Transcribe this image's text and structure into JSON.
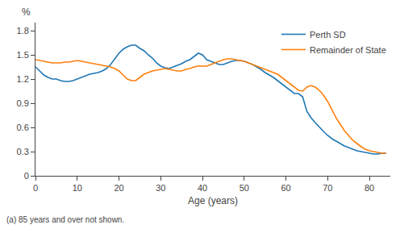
{
  "chart_data": {
    "type": "line",
    "xlabel": "Age (years)",
    "ylabel": "%",
    "footnote": "(a) 85 years and over not shown.",
    "x": [
      0,
      1,
      2,
      3,
      4,
      5,
      6,
      7,
      8,
      9,
      10,
      11,
      12,
      13,
      14,
      15,
      16,
      17,
      18,
      19,
      20,
      21,
      22,
      23,
      24,
      25,
      26,
      27,
      28,
      29,
      30,
      31,
      32,
      33,
      34,
      35,
      36,
      37,
      38,
      39,
      40,
      41,
      42,
      43,
      44,
      45,
      46,
      47,
      48,
      49,
      50,
      51,
      52,
      53,
      54,
      55,
      56,
      57,
      58,
      59,
      60,
      61,
      62,
      63,
      64,
      65,
      66,
      67,
      68,
      69,
      70,
      71,
      72,
      73,
      74,
      75,
      76,
      77,
      78,
      79,
      80,
      81,
      82,
      83,
      84
    ],
    "series": [
      {
        "name": "Perth SD",
        "values": [
          1.35,
          1.3,
          1.25,
          1.22,
          1.2,
          1.2,
          1.18,
          1.17,
          1.17,
          1.18,
          1.2,
          1.22,
          1.24,
          1.26,
          1.27,
          1.28,
          1.3,
          1.33,
          1.38,
          1.45,
          1.52,
          1.57,
          1.6,
          1.62,
          1.62,
          1.58,
          1.55,
          1.5,
          1.46,
          1.4,
          1.36,
          1.34,
          1.33,
          1.35,
          1.37,
          1.39,
          1.42,
          1.44,
          1.48,
          1.52,
          1.5,
          1.44,
          1.42,
          1.4,
          1.38,
          1.38,
          1.4,
          1.42,
          1.43,
          1.43,
          1.42,
          1.4,
          1.38,
          1.35,
          1.32,
          1.28,
          1.25,
          1.22,
          1.18,
          1.14,
          1.1,
          1.06,
          1.02,
          1.02,
          0.98,
          0.8,
          0.72,
          0.66,
          0.6,
          0.55,
          0.5,
          0.46,
          0.43,
          0.4,
          0.37,
          0.35,
          0.33,
          0.31,
          0.3,
          0.29,
          0.28,
          0.27,
          0.27,
          0.28,
          0.28
        ]
      },
      {
        "name": "Remainder of State",
        "values": [
          1.44,
          1.43,
          1.42,
          1.41,
          1.4,
          1.4,
          1.4,
          1.41,
          1.41,
          1.42,
          1.43,
          1.42,
          1.41,
          1.4,
          1.39,
          1.38,
          1.37,
          1.36,
          1.35,
          1.33,
          1.3,
          1.25,
          1.2,
          1.18,
          1.18,
          1.22,
          1.26,
          1.28,
          1.3,
          1.31,
          1.32,
          1.33,
          1.32,
          1.31,
          1.3,
          1.3,
          1.32,
          1.33,
          1.35,
          1.36,
          1.36,
          1.36,
          1.38,
          1.4,
          1.42,
          1.44,
          1.45,
          1.45,
          1.44,
          1.43,
          1.42,
          1.4,
          1.38,
          1.36,
          1.34,
          1.32,
          1.3,
          1.28,
          1.26,
          1.22,
          1.18,
          1.14,
          1.1,
          1.06,
          1.05,
          1.1,
          1.12,
          1.1,
          1.06,
          1.0,
          0.92,
          0.82,
          0.72,
          0.64,
          0.56,
          0.5,
          0.44,
          0.4,
          0.36,
          0.33,
          0.31,
          0.3,
          0.29,
          0.28,
          0.28
        ]
      }
    ],
    "xlim": [
      0,
      85
    ],
    "xticks": [
      0,
      10,
      20,
      30,
      40,
      50,
      60,
      70,
      80
    ],
    "ylim": [
      0,
      1.9
    ],
    "yticks": [
      0,
      0.3,
      0.6,
      0.9,
      1.2,
      1.5,
      1.8
    ],
    "grid": false,
    "legend": "upper right"
  }
}
